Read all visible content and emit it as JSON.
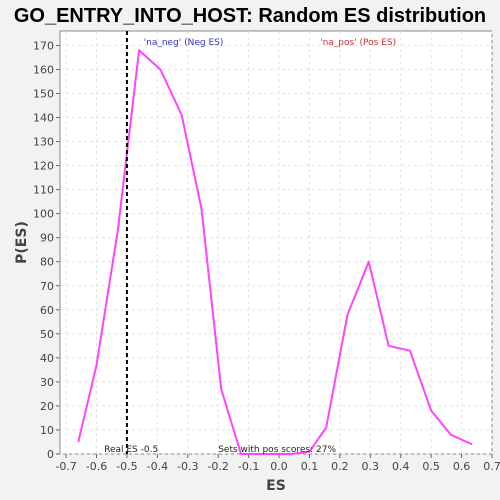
{
  "chart_data": {
    "type": "line",
    "title": "GO_ENTRY_INTO_HOST: Random ES distribution",
    "xlabel": "ES",
    "ylabel": "P(ES)",
    "xlim": [
      -0.72,
      0.7
    ],
    "ylim": [
      0,
      176
    ],
    "xticks": [
      -0.7,
      -0.6,
      -0.5,
      -0.4,
      -0.3,
      -0.2,
      -0.1,
      0.0,
      0.1,
      0.2,
      0.3,
      0.4,
      0.5,
      0.6,
      0.7
    ],
    "yticks": [
      0,
      10,
      20,
      30,
      40,
      50,
      60,
      70,
      80,
      90,
      100,
      110,
      120,
      130,
      140,
      150,
      160,
      170
    ],
    "grid": true,
    "series": [
      {
        "color": "#ff44ff",
        "x": [
          -0.66,
          -0.6,
          -0.53,
          -0.46,
          -0.39,
          -0.32,
          -0.255,
          -0.19,
          -0.125,
          0.04,
          0.1,
          0.155,
          0.225,
          0.295,
          0.36,
          0.43,
          0.5,
          0.565,
          0.635
        ],
        "y": [
          5,
          37,
          93,
          168,
          160,
          141,
          102,
          27,
          0,
          0,
          1,
          11,
          58,
          80,
          45,
          43,
          18,
          8,
          4
        ]
      }
    ],
    "real_es": -0.5,
    "annotations": {
      "neg_label": "'na_neg' (Neg ES)",
      "pos_label": "'na_pos' (Pos ES)",
      "real_es_label": "Real ES -0.5",
      "sets_label": "Sets with pos scores: 27%"
    },
    "colors": {
      "neg": "#3333cc",
      "pos": "#cc3333",
      "line": "#ff44ff"
    }
  }
}
